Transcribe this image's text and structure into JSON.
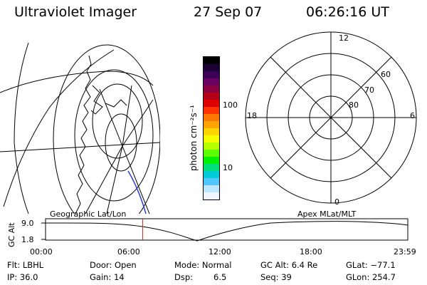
{
  "header": {
    "title": "Ultraviolet Imager",
    "date": "27 Sep 07",
    "time": "06:26:16 UT"
  },
  "colorbar": {
    "axis_label": "photon cm⁻²s⁻¹",
    "ticks": [
      "100",
      "10"
    ],
    "colors": [
      "#000000",
      "#1a0033",
      "#3a0057",
      "#6a0060",
      "#8a0040",
      "#b30018",
      "#de0000",
      "#ff3300",
      "#ff7700",
      "#ffa500",
      "#ffd400",
      "#f5ff00",
      "#b6ff00",
      "#5cff00",
      "#00f000",
      "#00e07a",
      "#00cdd6",
      "#50c8ff",
      "#bfe6ff",
      "#eef6ff"
    ]
  },
  "polar_plot": {
    "labels": [
      "12",
      "18",
      "6",
      "0",
      "60",
      "70",
      "80"
    ]
  },
  "altitude_panel": {
    "ylabel": "GC Alt",
    "yticks": [
      "9.0",
      "1.8"
    ],
    "left_label": "Geographic Lat/Lon",
    "right_label": "Apex MLat/MLT",
    "xticks": [
      "00:00",
      "06:00",
      "12:00",
      "18:00",
      "23:59"
    ],
    "current_time_fraction": 0.268
  },
  "info": {
    "flt": "Flt: LBHL",
    "ip": "IP: 36.0",
    "door": "Door: Open",
    "gain": "Gain: 14",
    "mode": "Mode: Normal",
    "dsp_label": "Dsp:",
    "dsp_value": "6.5",
    "gc_alt": "GC Alt: 6.4 Re",
    "seq": "Seq: 39",
    "glat": "GLat: −77.1",
    "glon": "GLon: 254.7"
  }
}
